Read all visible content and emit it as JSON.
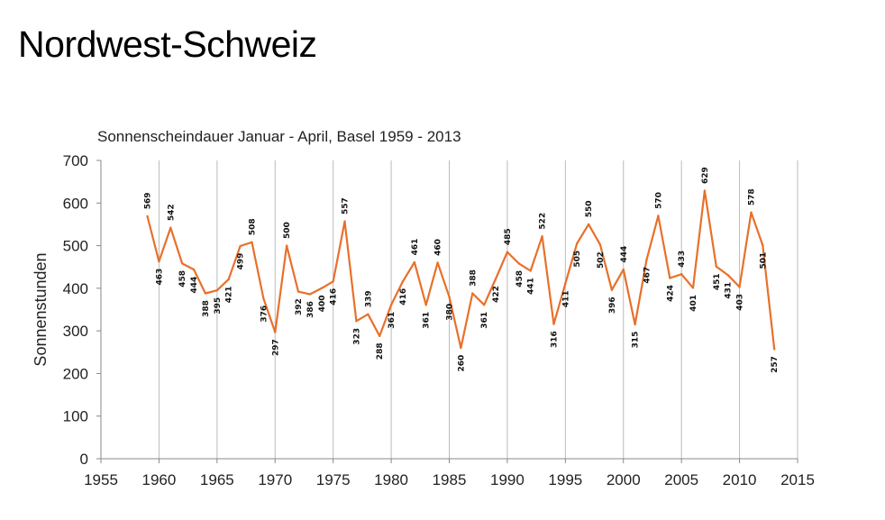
{
  "slide": {
    "title": "Nordwest-Schweiz"
  },
  "chart_data": {
    "type": "line",
    "title": "Sonnenscheindauer Januar - April, Basel 1959 - 2013",
    "xlabel": "",
    "ylabel": "Sonnenstunden",
    "xlim": [
      1955,
      2015
    ],
    "ylim": [
      0,
      700
    ],
    "xticks": [
      1955,
      1960,
      1965,
      1970,
      1975,
      1980,
      1985,
      1990,
      1995,
      2000,
      2005,
      2010,
      2015
    ],
    "yticks": [
      0,
      100,
      200,
      300,
      400,
      500,
      600,
      700
    ],
    "grid": "vertical",
    "data_labels": true,
    "colors": {
      "line": "#E8702A",
      "grid": "#BBBBBB",
      "axis": "#888888"
    },
    "series": [
      {
        "x": [
          1959,
          1960,
          1961,
          1962,
          1963,
          1964,
          1965,
          1966,
          1967,
          1968,
          1969,
          1970,
          1971,
          1972,
          1973,
          1974,
          1975,
          1976,
          1977,
          1978,
          1979,
          1980,
          1981,
          1982,
          1983,
          1984,
          1985,
          1986,
          1987,
          1988,
          1989,
          1990,
          1991,
          1992,
          1993,
          1994,
          1995,
          1996,
          1997,
          1998,
          1999,
          2000,
          2001,
          2002,
          2003,
          2004,
          2005,
          2006,
          2007,
          2008,
          2009,
          2010,
          2011,
          2012,
          2013
        ],
        "values": [
          569,
          463,
          542,
          458,
          444,
          388,
          395,
          421,
          499,
          508,
          376,
          297,
          500,
          392,
          386,
          400,
          416,
          557,
          323,
          339,
          288,
          361,
          416,
          461,
          361,
          460,
          380,
          260,
          388,
          361,
          422,
          485,
          458,
          441,
          522,
          316,
          411,
          505,
          550,
          502,
          396,
          444,
          315,
          467,
          570,
          424,
          433,
          401,
          629,
          451,
          431,
          403,
          578,
          501,
          257
        ]
      }
    ]
  }
}
